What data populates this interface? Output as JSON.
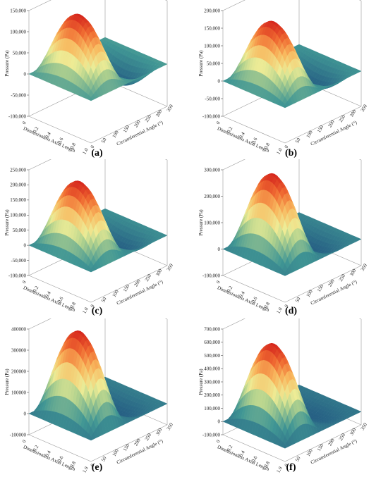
{
  "chart_data": [
    {
      "id": "a",
      "type": "surface",
      "caption": "(a)",
      "zlabel": "Pressure (Pa)",
      "xlabel": "Dimensionless Axial Length",
      "ylabel": "Circumferential Angle (°)",
      "z_ticks": [
        "-100,000",
        "-50,000",
        "0",
        "50,000",
        "100,000",
        "150,000"
      ],
      "z_tick_values": [
        -100000,
        -50000,
        0,
        50000,
        100000,
        150000
      ],
      "x_ticks": [
        "0",
        "0.2",
        "0.4",
        "0.6",
        "0.8",
        "1.0"
      ],
      "y_ticks": [
        "0",
        "50",
        "100",
        "150",
        "200",
        "250",
        "300",
        "350"
      ],
      "z_range": [
        -100000,
        150000
      ],
      "peak": 150000,
      "trough": -55000
    },
    {
      "id": "b",
      "type": "surface",
      "caption": "(b)",
      "zlabel": "Pressure (Pa)",
      "xlabel": "Dimensionless Axial Length",
      "ylabel": "Circumferential Angle (°)",
      "z_ticks": [
        "-100,000",
        "-50,000",
        "0",
        "50,000",
        "100,000",
        "150,000",
        "200,000"
      ],
      "z_tick_values": [
        -100000,
        -50000,
        0,
        50000,
        100000,
        150000,
        200000
      ],
      "x_ticks": [
        "0",
        "0.2",
        "0.4",
        "0.6",
        "0.8",
        "1.0"
      ],
      "y_ticks": [
        "0",
        "50",
        "100",
        "150",
        "200",
        "250",
        "300",
        "350"
      ],
      "z_range": [
        -100000,
        200000
      ],
      "peak": 180000,
      "trough": -55000
    },
    {
      "id": "c",
      "type": "surface",
      "caption": "(c)",
      "zlabel": "Pressure (Pa)",
      "xlabel": "Dimensionless Axial Length",
      "ylabel": "Circumferential Angle (°)",
      "z_ticks": [
        "-100,000",
        "-50,000",
        "0",
        "50,000",
        "100,000",
        "150,000",
        "200,000",
        "250,000"
      ],
      "z_tick_values": [
        -100000,
        -50000,
        0,
        50000,
        100000,
        150000,
        200000,
        250000
      ],
      "x_ticks": [
        "0",
        "0.2",
        "0.4",
        "0.6",
        "0.8",
        "1.0"
      ],
      "y_ticks": [
        "0",
        "50",
        "100",
        "150",
        "200",
        "250",
        "300",
        "350"
      ],
      "z_range": [
        -100000,
        250000
      ],
      "peak": 225000,
      "trough": -60000
    },
    {
      "id": "d",
      "type": "surface",
      "caption": "(d)",
      "zlabel": "Pressure (Pa)",
      "xlabel": "Dimensionless Axial Length",
      "ylabel": "Circumferential Angle (°)",
      "z_ticks": [
        "-100,000",
        "0",
        "100,000",
        "200,000",
        "300,000"
      ],
      "z_tick_values": [
        -100000,
        0,
        100000,
        200000,
        300000
      ],
      "x_ticks": [
        "0",
        "0.2",
        "0.4",
        "0.6",
        "0.8",
        "1.0"
      ],
      "y_ticks": [
        "0",
        "50",
        "100",
        "150",
        "200",
        "250",
        "300",
        "350"
      ],
      "z_range": [
        -100000,
        300000
      ],
      "peak": 300000,
      "trough": -60000
    },
    {
      "id": "e",
      "type": "surface",
      "caption": "(e)",
      "zlabel": "Pressure (Pa)",
      "xlabel": "Dimensionless Axial Length",
      "ylabel": "Circumferential Angle (°)",
      "z_ticks": [
        "-100000",
        "0",
        "100000",
        "200000",
        "300000",
        "400000"
      ],
      "z_tick_values": [
        -100000,
        0,
        100000,
        200000,
        300000,
        400000
      ],
      "x_ticks": [
        "0",
        "0.2",
        "0.4",
        "0.6",
        "0.8",
        "1.0"
      ],
      "y_ticks": [
        "0",
        "50",
        "100",
        "150",
        "200",
        "250",
        "300",
        "350"
      ],
      "z_range": [
        -100000,
        400000
      ],
      "peak": 410000,
      "trough": -65000
    },
    {
      "id": "f",
      "type": "surface",
      "caption": "(f)",
      "zlabel": "Pressure (Pa)",
      "xlabel": "Dimensionless Axial Length",
      "ylabel": "Circumferential Angle (°)",
      "z_ticks": [
        "-100,000",
        "0",
        "100,000",
        "200,000",
        "300,000",
        "400,000",
        "500,000",
        "600,000",
        "700,000"
      ],
      "z_tick_values": [
        -100000,
        0,
        100000,
        200000,
        300000,
        400000,
        500000,
        600000,
        700000
      ],
      "x_ticks": [
        "0",
        "0.2",
        "0.4",
        "0.6",
        "0.8",
        "1.0"
      ],
      "y_ticks": [
        "0",
        "50",
        "100",
        "150",
        "200",
        "250",
        "300",
        "350"
      ],
      "z_range": [
        -100000,
        700000
      ],
      "peak": 620000,
      "trough": -70000
    }
  ]
}
